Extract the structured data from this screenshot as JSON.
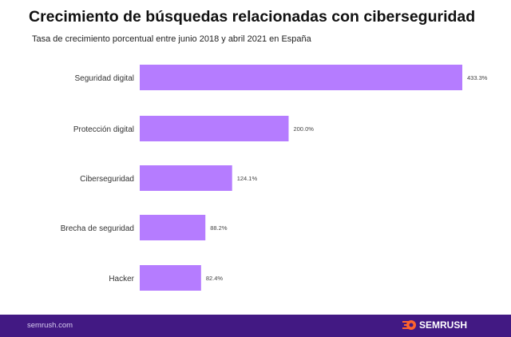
{
  "chart_data": {
    "type": "bar",
    "orientation": "horizontal",
    "title": "Crecimiento de búsquedas relacionadas con ciberseguridad",
    "subtitle": "Tasa de crecimiento porcentual entre junio 2018 y abril 2021 en España",
    "categories": [
      "Seguridad digital",
      "Protección digital",
      "Ciberseguridad",
      "Brecha de seguridad",
      "Hacker"
    ],
    "values": [
      433.3,
      200.0,
      124.1,
      88.2,
      82.4
    ],
    "data_labels": [
      "433.3%",
      "200.0%",
      "124.1%",
      "88.2%",
      "82.4%"
    ],
    "xlim": [
      0,
      433.3
    ],
    "grid": false,
    "bar_color": "#B57CFF"
  },
  "footer": {
    "site": "semrush.com",
    "brand": "SEMRUSH",
    "background": "#421983",
    "logo_color": "#FF642D"
  }
}
